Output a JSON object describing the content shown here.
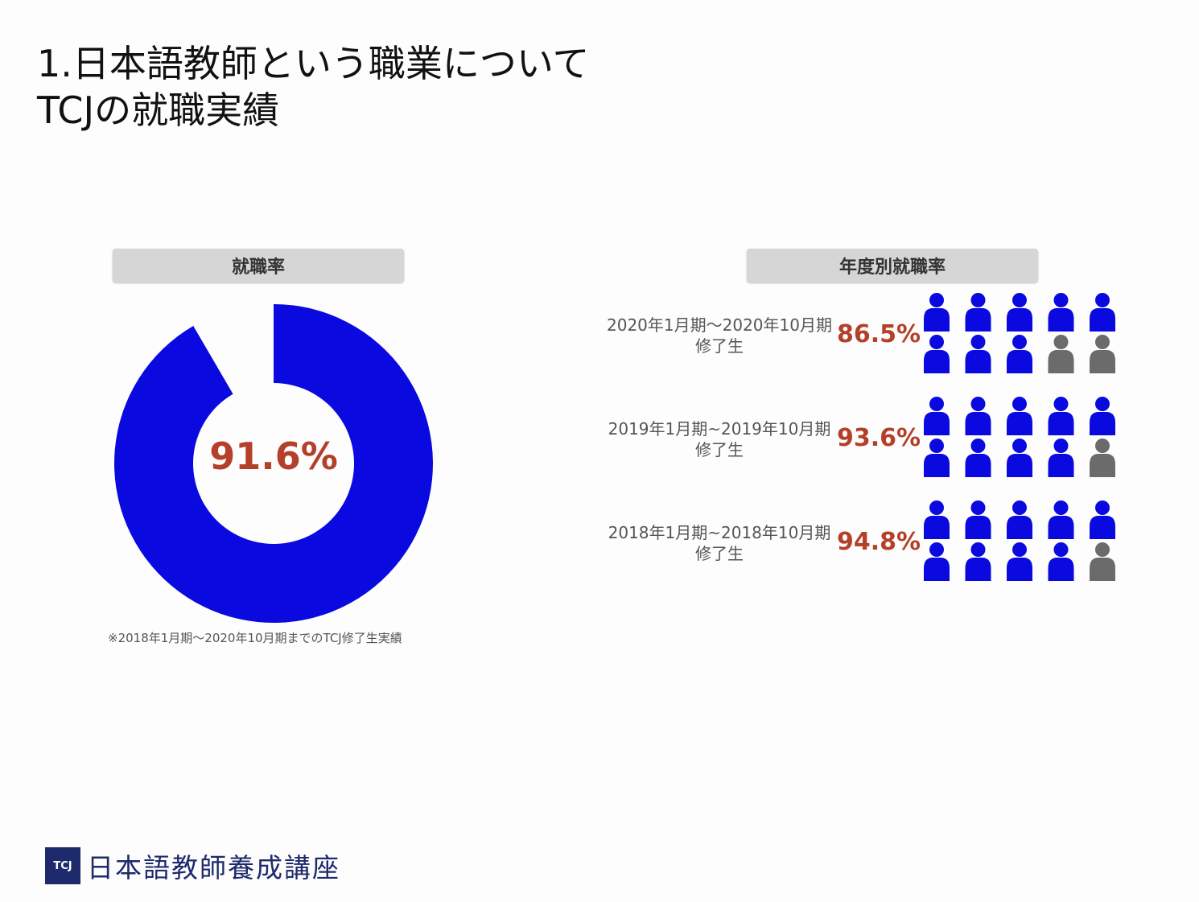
{
  "slide": {
    "title_line1": "1.日本語教師という職業について",
    "title_line2": "TCJの就職実績"
  },
  "left_panel": {
    "header": "就職率",
    "footnote": "※2018年1月期～2020年10月期までのTCJ修了生実績"
  },
  "right_panel": {
    "header": "年度別就職率"
  },
  "footer": {
    "logo_mark": "TCJ",
    "logo_text": "日本語教師養成講座"
  },
  "colors": {
    "primary": "#0a0ae0",
    "inactive": "#6b6b6b",
    "accent_text": "#b5402a",
    "header_bg": "#d6d6d6"
  },
  "chart_data": [
    {
      "type": "pie",
      "title": "就職率",
      "values": [
        91.6,
        8.4
      ],
      "center_label": "91.6%",
      "colors": [
        "#0a0ae0",
        "#fdfdfd"
      ]
    },
    {
      "type": "table",
      "title": "年度別就職率",
      "icons_per_row": 10,
      "rows": [
        {
          "label_line1": "2020年1月期～2020年10月期",
          "label_line2": "修了生",
          "value": 86.5,
          "value_label": "86.5%",
          "filled_icons": 8
        },
        {
          "label_line1": "2019年1月期~2019年10月期",
          "label_line2": "修了生",
          "value": 93.6,
          "value_label": "93.6%",
          "filled_icons": 9
        },
        {
          "label_line1": "2018年1月期~2018年10月期",
          "label_line2": "修了生",
          "value": 94.8,
          "value_label": "94.8%",
          "filled_icons": 9
        }
      ]
    }
  ]
}
